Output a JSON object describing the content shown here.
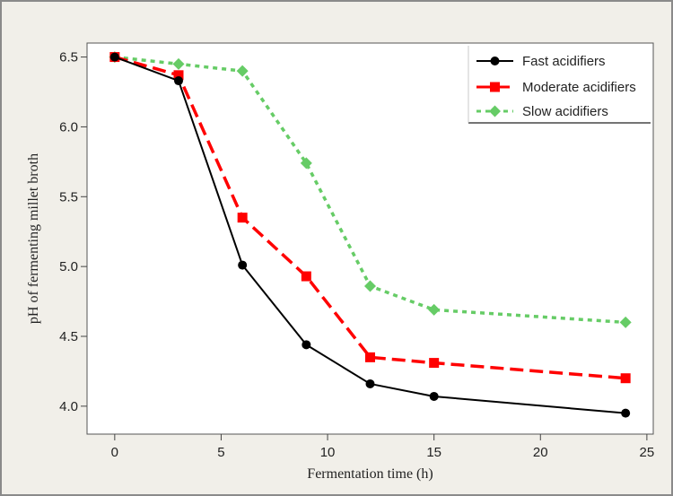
{
  "chart_data": {
    "type": "line",
    "title": "",
    "xlabel": "Fermentation time (h)",
    "ylabel": "pH of fermenting millet broth",
    "xlim": [
      -1.3,
      25.3
    ],
    "ylim": [
      3.8,
      6.6
    ],
    "xticks": [
      0,
      5,
      10,
      15,
      20,
      25
    ],
    "xtick_labels": [
      "0",
      "5",
      "10",
      "15",
      "20",
      "25"
    ],
    "yticks": [
      4.0,
      4.5,
      5.0,
      5.5,
      6.0,
      6.5
    ],
    "ytick_labels": [
      "4.0",
      "4.5",
      "5.0",
      "5.5",
      "6.0",
      "6.5"
    ],
    "grid": false,
    "legend": {
      "placement": "top-right",
      "entries": [
        "Fast acidifiers",
        "Moderate acidifiers",
        "Slow acidifiers"
      ]
    },
    "x": [
      0,
      3,
      6,
      9,
      12,
      15,
      24
    ],
    "series": [
      {
        "name": "Fast acidifiers",
        "values": [
          6.5,
          6.33,
          5.01,
          4.44,
          4.16,
          4.07,
          3.95
        ],
        "color": "#000000",
        "marker": "circle",
        "line_style": "solid"
      },
      {
        "name": "Moderate acidifiers",
        "values": [
          6.5,
          6.37,
          5.35,
          4.93,
          4.35,
          4.31,
          4.2
        ],
        "color": "#ff0000",
        "marker": "square",
        "line_style": "dashed"
      },
      {
        "name": "Slow acidifiers",
        "values": [
          6.5,
          6.45,
          6.4,
          5.74,
          4.86,
          4.69,
          4.6
        ],
        "color": "#66cc66",
        "marker": "diamond",
        "line_style": "dotted"
      }
    ]
  }
}
